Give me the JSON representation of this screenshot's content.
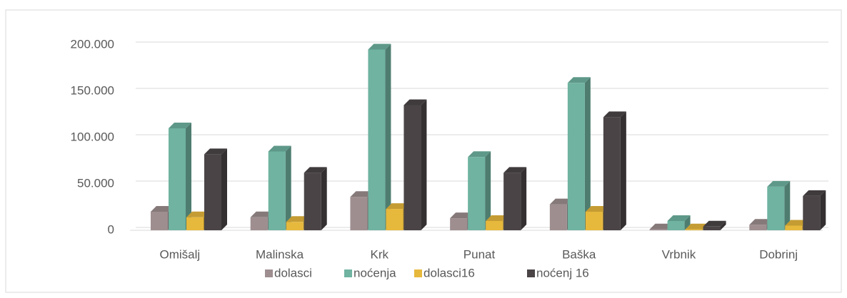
{
  "chart_data": {
    "type": "bar3d",
    "categories": [
      "Omišalj",
      "Malinska",
      "Krk",
      "Punat",
      "Baška",
      "Vrbnik",
      "Dobrinj"
    ],
    "series": [
      {
        "name": "dolasci",
        "color": "#9e8e90",
        "values": [
          20000,
          14000,
          36000,
          13000,
          28000,
          1000,
          6000
        ]
      },
      {
        "name": "noćenja",
        "color": "#6fb3a0",
        "values": [
          110000,
          85000,
          195000,
          79000,
          159000,
          10000,
          47000
        ]
      },
      {
        "name": "dolasci16",
        "color": "#e6b83c",
        "values": [
          14000,
          9000,
          23000,
          10000,
          20000,
          1000,
          5000
        ]
      },
      {
        "name": "noćenj 16",
        "color": "#4a4446",
        "values": [
          82000,
          62000,
          135000,
          62000,
          122000,
          4000,
          37000
        ]
      }
    ],
    "ylim": [
      0,
      200000
    ],
    "yticks": [
      0,
      {
        "value": 50000,
        "label": "50.000"
      },
      {
        "value": 100000,
        "label": "100.000"
      },
      {
        "value": 150000,
        "label": "150.000"
      },
      {
        "value": 200000,
        "label": "200.000"
      }
    ],
    "grid": true,
    "legend": "bottom"
  }
}
